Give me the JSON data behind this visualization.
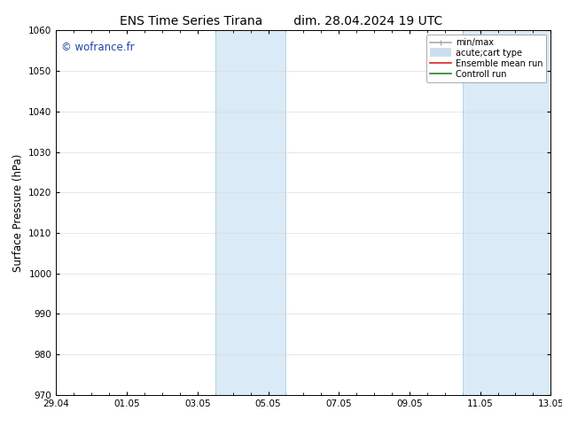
{
  "title_left": "ENS Time Series Tirana",
  "title_right": "dim. 28.04.2024 19 UTC",
  "ylabel": "Surface Pressure (hPa)",
  "ylim": [
    970,
    1060
  ],
  "yticks": [
    970,
    980,
    990,
    1000,
    1010,
    1020,
    1030,
    1040,
    1050,
    1060
  ],
  "xlim": [
    0,
    14
  ],
  "xtick_labels": [
    "29.04",
    "01.05",
    "03.05",
    "05.05",
    "07.05",
    "09.05",
    "11.05",
    "13.05"
  ],
  "xtick_positions": [
    0,
    2,
    4,
    6,
    8,
    10,
    12,
    14
  ],
  "shaded_bands": [
    {
      "x_start": 4.5,
      "x_end": 6.5
    },
    {
      "x_start": 11.5,
      "x_end": 14.0
    }
  ],
  "shaded_color": "#daeaf6",
  "band_edge_color": "#b0cfe0",
  "watermark": "© wofrance.fr",
  "watermark_color": "#2244aa",
  "legend_items": [
    {
      "label": "min/max",
      "color": "#aaaaaa",
      "lw": 1.2,
      "style": "line_with_caps"
    },
    {
      "label": "acute;cart type",
      "color": "#ccdded",
      "lw": 7,
      "style": "thick"
    },
    {
      "label": "Ensemble mean run",
      "color": "#dd2222",
      "lw": 1.2,
      "style": "line"
    },
    {
      "label": "Controll run",
      "color": "#228822",
      "lw": 1.2,
      "style": "line"
    }
  ],
  "bg_color": "#ffffff",
  "plot_bg_color": "#ffffff",
  "grid_color": "#dddddd",
  "title_fontsize": 10,
  "tick_fontsize": 7.5,
  "ylabel_fontsize": 8.5,
  "watermark_fontsize": 8.5,
  "legend_fontsize": 7
}
